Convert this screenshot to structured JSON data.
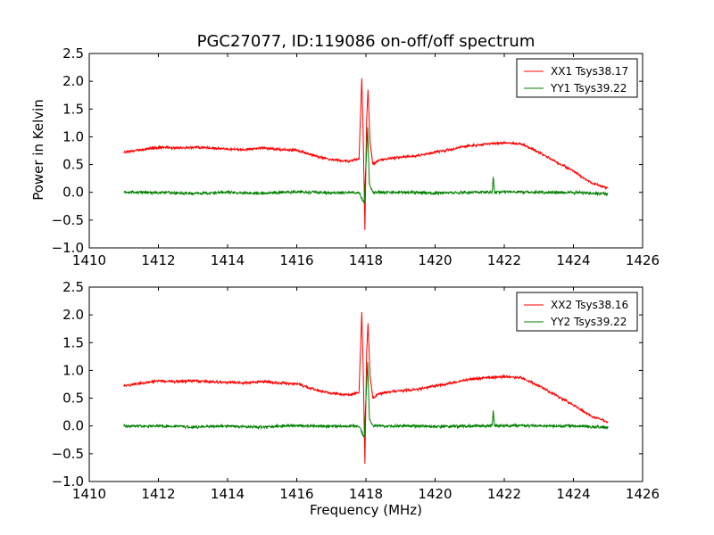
{
  "chart_data": {
    "type": "line",
    "title": "PGC27077, ID:119086 on-off/off spectrum",
    "xlabel": "Frequency (MHz)",
    "ylabel": "Power in Kelvin",
    "xlim": [
      1410,
      1426
    ],
    "ylim": [
      -1.0,
      2.5
    ],
    "xticks": [
      "1410",
      "1412",
      "1414",
      "1416",
      "1418",
      "1420",
      "1422",
      "1424",
      "1426"
    ],
    "yticks": [
      "2.5",
      "2.0",
      "1.5",
      "1.0",
      "0.5",
      "0.0",
      "−0.5",
      "−1.0"
    ],
    "grid": false,
    "legend_position": "top-right",
    "panels": [
      {
        "series": [
          {
            "name": "XX1 Tsys38.17",
            "color": "#ff0000",
            "points": [
              [
                1411.0,
                0.72
              ],
              [
                1411.5,
                0.77
              ],
              [
                1412.0,
                0.81
              ],
              [
                1412.5,
                0.8
              ],
              [
                1413.0,
                0.81
              ],
              [
                1413.5,
                0.8
              ],
              [
                1414.0,
                0.78
              ],
              [
                1414.5,
                0.77
              ],
              [
                1415.0,
                0.8
              ],
              [
                1415.5,
                0.77
              ],
              [
                1416.0,
                0.76
              ],
              [
                1416.3,
                0.7
              ],
              [
                1416.6,
                0.64
              ],
              [
                1417.0,
                0.59
              ],
              [
                1417.5,
                0.56
              ],
              [
                1417.8,
                0.6
              ],
              [
                1417.88,
                2.05
              ],
              [
                1417.92,
                1.1
              ],
              [
                1417.97,
                -0.68
              ],
              [
                1418.02,
                1.3
              ],
              [
                1418.06,
                1.85
              ],
              [
                1418.12,
                0.9
              ],
              [
                1418.2,
                0.5
              ],
              [
                1418.35,
                0.58
              ],
              [
                1418.8,
                0.62
              ],
              [
                1419.5,
                0.66
              ],
              [
                1420.0,
                0.72
              ],
              [
                1420.5,
                0.78
              ],
              [
                1421.0,
                0.84
              ],
              [
                1421.5,
                0.87
              ],
              [
                1422.0,
                0.89
              ],
              [
                1422.5,
                0.87
              ],
              [
                1423.0,
                0.72
              ],
              [
                1423.5,
                0.55
              ],
              [
                1424.0,
                0.38
              ],
              [
                1424.5,
                0.18
              ],
              [
                1425.0,
                0.07
              ]
            ]
          },
          {
            "name": "YY1 Tsys39.22",
            "color": "#008000",
            "points": [
              [
                1411.0,
                0.0
              ],
              [
                1412.0,
                0.0
              ],
              [
                1413.0,
                -0.02
              ],
              [
                1414.0,
                0.0
              ],
              [
                1415.0,
                -0.02
              ],
              [
                1416.0,
                0.01
              ],
              [
                1417.0,
                -0.01
              ],
              [
                1417.8,
                0.0
              ],
              [
                1417.95,
                -0.2
              ],
              [
                1418.05,
                1.15
              ],
              [
                1418.1,
                0.15
              ],
              [
                1418.2,
                0.0
              ],
              [
                1419.0,
                0.0
              ],
              [
                1420.0,
                -0.01
              ],
              [
                1421.0,
                0.0
              ],
              [
                1421.65,
                0.0
              ],
              [
                1421.68,
                0.28
              ],
              [
                1421.72,
                0.0
              ],
              [
                1422.0,
                0.01
              ],
              [
                1423.0,
                0.0
              ],
              [
                1424.0,
                0.0
              ],
              [
                1425.0,
                -0.03
              ]
            ]
          }
        ]
      },
      {
        "series": [
          {
            "name": "XX2 Tsys38.16",
            "color": "#ff0000",
            "points": [
              [
                1411.0,
                0.72
              ],
              [
                1411.5,
                0.77
              ],
              [
                1412.0,
                0.81
              ],
              [
                1412.5,
                0.8
              ],
              [
                1413.0,
                0.81
              ],
              [
                1413.5,
                0.8
              ],
              [
                1414.0,
                0.78
              ],
              [
                1414.5,
                0.77
              ],
              [
                1415.0,
                0.8
              ],
              [
                1415.5,
                0.77
              ],
              [
                1416.0,
                0.76
              ],
              [
                1416.3,
                0.7
              ],
              [
                1416.6,
                0.64
              ],
              [
                1417.0,
                0.59
              ],
              [
                1417.5,
                0.56
              ],
              [
                1417.8,
                0.6
              ],
              [
                1417.88,
                2.05
              ],
              [
                1417.92,
                1.1
              ],
              [
                1417.97,
                -0.68
              ],
              [
                1418.02,
                1.3
              ],
              [
                1418.06,
                1.85
              ],
              [
                1418.12,
                0.9
              ],
              [
                1418.2,
                0.5
              ],
              [
                1418.35,
                0.58
              ],
              [
                1418.8,
                0.62
              ],
              [
                1419.5,
                0.66
              ],
              [
                1420.0,
                0.72
              ],
              [
                1420.5,
                0.78
              ],
              [
                1421.0,
                0.84
              ],
              [
                1421.5,
                0.87
              ],
              [
                1422.0,
                0.89
              ],
              [
                1422.5,
                0.87
              ],
              [
                1423.0,
                0.72
              ],
              [
                1423.5,
                0.55
              ],
              [
                1424.0,
                0.38
              ],
              [
                1424.5,
                0.18
              ],
              [
                1425.0,
                0.07
              ]
            ]
          },
          {
            "name": "YY2 Tsys39.22",
            "color": "#008000",
            "points": [
              [
                1411.0,
                0.0
              ],
              [
                1412.0,
                0.0
              ],
              [
                1413.0,
                -0.02
              ],
              [
                1414.0,
                0.0
              ],
              [
                1415.0,
                -0.02
              ],
              [
                1416.0,
                0.01
              ],
              [
                1417.0,
                -0.01
              ],
              [
                1417.8,
                0.0
              ],
              [
                1417.95,
                -0.2
              ],
              [
                1418.05,
                1.15
              ],
              [
                1418.1,
                0.15
              ],
              [
                1418.2,
                0.0
              ],
              [
                1419.0,
                0.0
              ],
              [
                1420.0,
                -0.01
              ],
              [
                1421.0,
                0.0
              ],
              [
                1421.65,
                0.0
              ],
              [
                1421.68,
                0.28
              ],
              [
                1421.72,
                0.0
              ],
              [
                1422.0,
                0.01
              ],
              [
                1423.0,
                0.0
              ],
              [
                1424.0,
                0.0
              ],
              [
                1425.0,
                -0.03
              ]
            ]
          }
        ]
      }
    ]
  }
}
